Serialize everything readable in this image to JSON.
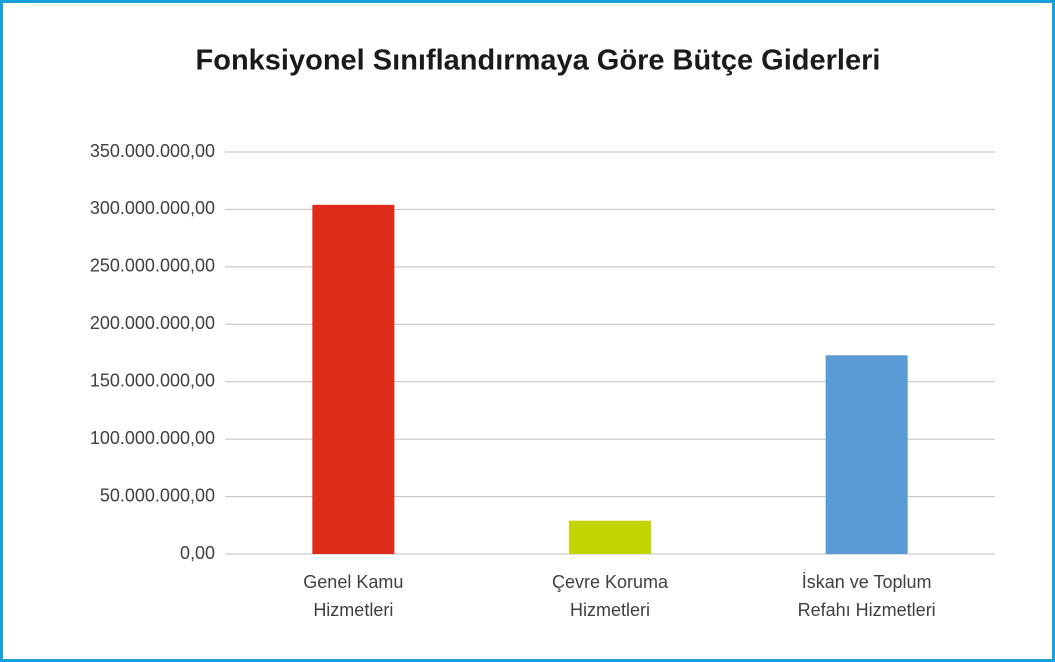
{
  "chart_data": {
    "type": "bar",
    "title": "Fonksiyonel Sınıflandırmaya Göre Bütçe Giderleri",
    "categories": [
      [
        "Genel Kamu",
        "Hizmetleri"
      ],
      [
        "Çevre Koruma",
        "Hizmetleri"
      ],
      [
        "İskan ve Toplum",
        "Refahı Hizmetleri"
      ]
    ],
    "values": [
      304000000,
      29000000,
      173000000
    ],
    "colors": [
      "#de2c1b",
      "#c2d500",
      "#5b9bd5"
    ],
    "ylim": [
      0,
      350000000
    ],
    "yticks": [
      {
        "value": 0,
        "label": "0,00"
      },
      {
        "value": 50000000,
        "label": "50.000.000,00"
      },
      {
        "value": 100000000,
        "label": "100.000.000,00"
      },
      {
        "value": 150000000,
        "label": "150.000.000,00"
      },
      {
        "value": 200000000,
        "label": "200.000.000,00"
      },
      {
        "value": 250000000,
        "label": "250.000.000,00"
      },
      {
        "value": 300000000,
        "label": "300.000.000,00"
      },
      {
        "value": 350000000,
        "label": "350.000.000,00"
      }
    ],
    "grid": true
  }
}
